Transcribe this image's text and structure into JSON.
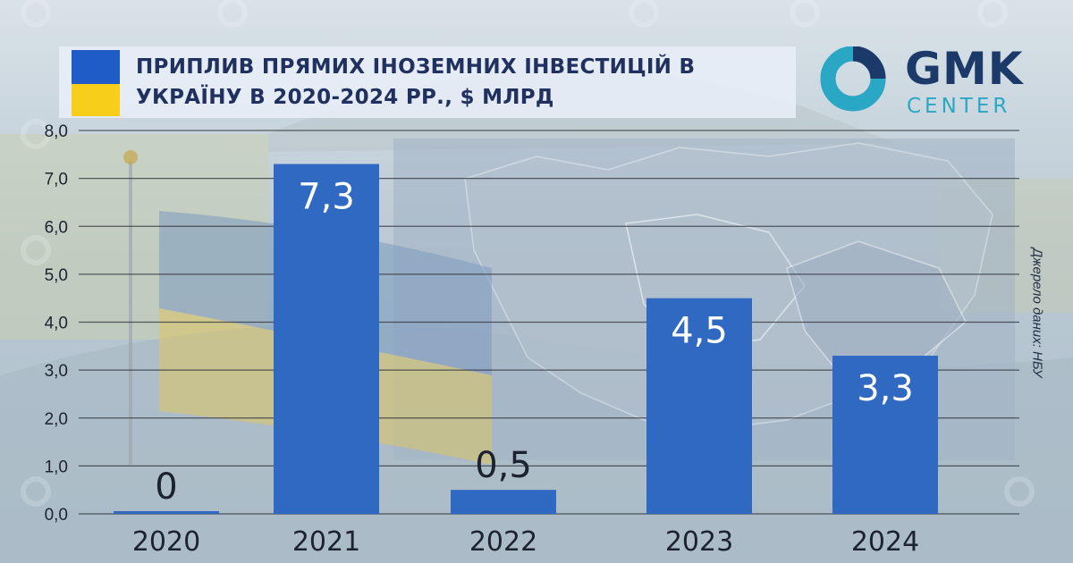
{
  "header": {
    "title_line1": "ПРИПЛИВ ПРЯМИХ ІНОЗЕМНИХ ІНВЕСТИЦІЙ В",
    "title_line2": "УКРАЇНУ В 2020-2024 РР., $ МЛРД"
  },
  "logo": {
    "name": "GMK",
    "sub": "CENTER"
  },
  "source": "Джерело даних: НБУ",
  "colors": {
    "bar": "#2f69c2",
    "flag_blue": "#1f5cc8",
    "flag_yellow": "#f7cf1b",
    "title": "#21315f",
    "logo_dark": "#1b3a6a",
    "logo_accent": "#2aa7c4"
  },
  "chart_data": {
    "type": "bar",
    "title": "ПРИПЛИВ ПРЯМИХ ІНОЗЕМНИХ ІНВЕСТИЦІЙ В УКРАЇНУ В 2020-2024 РР., $ МЛРД",
    "categories": [
      "2020",
      "2021",
      "2022",
      "2023",
      "2024"
    ],
    "values": [
      0,
      7.3,
      0.5,
      4.5,
      3.3
    ],
    "value_labels": [
      "0",
      "7,3",
      "0,5",
      "4,5",
      "3,3"
    ],
    "yticks": [
      "0,0",
      "1,0",
      "2,0",
      "3,0",
      "4,0",
      "5,0",
      "6,0",
      "7,0",
      "8,0"
    ],
    "ylim": [
      0,
      8
    ],
    "xlabel": "",
    "ylabel": "",
    "grid": true
  }
}
